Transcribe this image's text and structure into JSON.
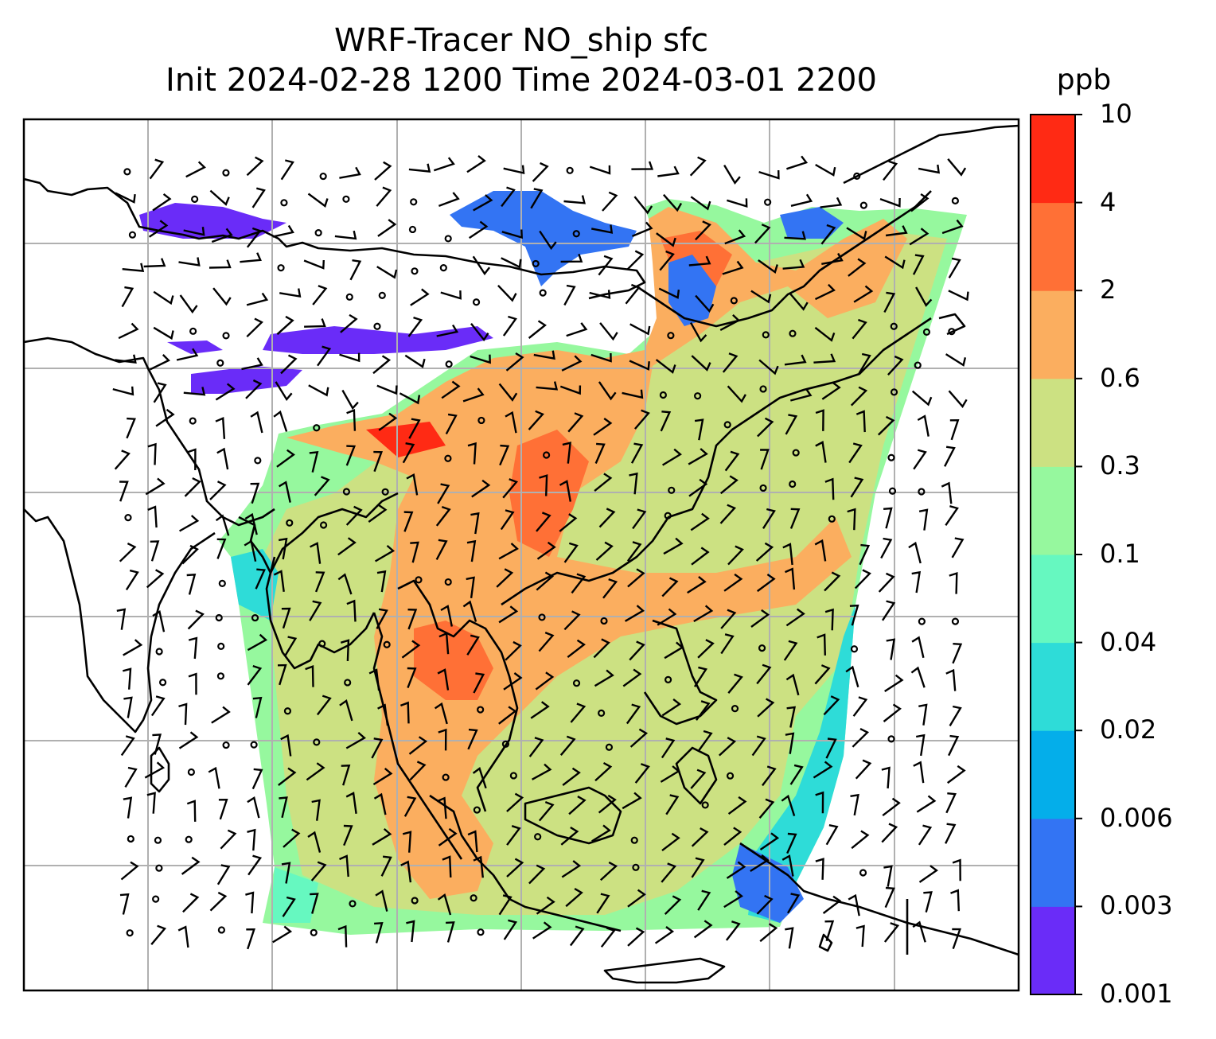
{
  "title": {
    "line1": "WRF-Tracer NO_ship sfc",
    "line2": "Init 2024-02-28 1200 Time 2024-03-01 2200"
  },
  "colorbar": {
    "units": "ppb",
    "ticks": [
      "0.001",
      "0.003",
      "0.006",
      "0.02",
      "0.04",
      "0.1",
      "0.3",
      "0.6",
      "2",
      "4",
      "10"
    ],
    "colors": [
      "#6a2cf8",
      "#3374f3",
      "#04aeea",
      "#2edcd8",
      "#66f8c0",
      "#96f89e",
      "#cce182",
      "#fbae5f",
      "#ff7036",
      "#ff2a14"
    ]
  },
  "map": {
    "gridlines": true,
    "coastline_color": "#000000",
    "grid_color": "#b0b0b0",
    "features": [
      "wind-barbs",
      "tracer-field",
      "coastlines"
    ]
  }
}
